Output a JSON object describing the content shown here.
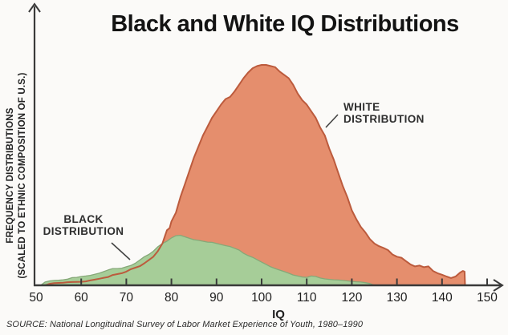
{
  "title": "Black and White IQ Distributions",
  "y_axis": {
    "label_line1": "FREQUENCY DISTRIBUTIONS",
    "label_line2": "(SCALED TO ETHNIC COMPOSITION OF U.S.)"
  },
  "x_axis": {
    "label": "IQ"
  },
  "labels": {
    "white_line1": "WHITE",
    "white_line2": "DISTRIBUTION",
    "black_line1": "BLACK",
    "black_line2": "DISTRIBUTION"
  },
  "source": "SOURCE: National Longitudinal Survey of Labor Market Experience of Youth, 1980–1990",
  "colors": {
    "white_fill": "#E58E6D",
    "white_stroke": "#BC5B3D",
    "black_fill": "#A6CD98",
    "black_stroke": "#86A878",
    "axis": "#3A3A3A",
    "pointer": "#444444"
  },
  "chart_data": {
    "type": "area",
    "title": "Black and White IQ Distributions",
    "xlabel": "IQ",
    "ylabel": "FREQUENCY DISTRIBUTIONS (SCALED TO ETHNIC COMPOSITION OF U.S.)",
    "x_ticks": [
      50,
      60,
      70,
      80,
      90,
      100,
      110,
      120,
      130,
      140,
      150
    ],
    "xlim": [
      50,
      155
    ],
    "ylim": [
      0,
      105
    ],
    "grid": false,
    "legend_position": "inline-annotations",
    "y_units": "relative frequency (unlabeled axis, white peak = 100)",
    "series": [
      {
        "name": "WHITE DISTRIBUTION",
        "peak_iq": 100,
        "points": [
          [
            52,
            0
          ],
          [
            53,
            0.7
          ],
          [
            54,
            1
          ],
          [
            55,
            1.1
          ],
          [
            56,
            1.2
          ],
          [
            57,
            1.4
          ],
          [
            58,
            1.5
          ],
          [
            60,
            1.6
          ],
          [
            61,
            1.8
          ],
          [
            62,
            2.2
          ],
          [
            63,
            2.6
          ],
          [
            64,
            3
          ],
          [
            65,
            3.4
          ],
          [
            66,
            3.8
          ],
          [
            67,
            4.7
          ],
          [
            68,
            5.1
          ],
          [
            69,
            5.5
          ],
          [
            70,
            6.2
          ],
          [
            71,
            7.3
          ],
          [
            72,
            8
          ],
          [
            73,
            8.7
          ],
          [
            74,
            10
          ],
          [
            75,
            11.5
          ],
          [
            76,
            13
          ],
          [
            77,
            15.5
          ],
          [
            78,
            19
          ],
          [
            78.5,
            22
          ],
          [
            79,
            25
          ],
          [
            79.6,
            26
          ],
          [
            80,
            29
          ],
          [
            81,
            33
          ],
          [
            82,
            40
          ],
          [
            83,
            46
          ],
          [
            84,
            52
          ],
          [
            85,
            58
          ],
          [
            86,
            63
          ],
          [
            87,
            68
          ],
          [
            88,
            72
          ],
          [
            89,
            76
          ],
          [
            90,
            79
          ],
          [
            91,
            82
          ],
          [
            92,
            84.5
          ],
          [
            93,
            85.5
          ],
          [
            94,
            88
          ],
          [
            95,
            91
          ],
          [
            96,
            94
          ],
          [
            97,
            96.5
          ],
          [
            98,
            98.5
          ],
          [
            99,
            99.5
          ],
          [
            100,
            100
          ],
          [
            101,
            100
          ],
          [
            102,
            99.5
          ],
          [
            103,
            99
          ],
          [
            104,
            97
          ],
          [
            105,
            95.5
          ],
          [
            106,
            94
          ],
          [
            107,
            91
          ],
          [
            108,
            87
          ],
          [
            109,
            84
          ],
          [
            110,
            82
          ],
          [
            111,
            79
          ],
          [
            112,
            76
          ],
          [
            113,
            71.5
          ],
          [
            114,
            68
          ],
          [
            115,
            62
          ],
          [
            116,
            57
          ],
          [
            117,
            51
          ],
          [
            118,
            45
          ],
          [
            119,
            40
          ],
          [
            120,
            34
          ],
          [
            121,
            30
          ],
          [
            122,
            26.5
          ],
          [
            123,
            24
          ],
          [
            124,
            21
          ],
          [
            125,
            19
          ],
          [
            126,
            17.8
          ],
          [
            127,
            17
          ],
          [
            128,
            16
          ],
          [
            129,
            14
          ],
          [
            130,
            13
          ],
          [
            131,
            12.5
          ],
          [
            132,
            11
          ],
          [
            133,
            9.5
          ],
          [
            134,
            8.6
          ],
          [
            135,
            9
          ],
          [
            136,
            8.2
          ],
          [
            137,
            8.6
          ],
          [
            138,
            6.5
          ],
          [
            139,
            5.5
          ],
          [
            140,
            4.8
          ],
          [
            141,
            4
          ],
          [
            142,
            3.3
          ],
          [
            143,
            4
          ],
          [
            144,
            5.8
          ],
          [
            144.6,
            6.5
          ],
          [
            145,
            6.2
          ],
          [
            145.1,
            0
          ]
        ]
      },
      {
        "name": "BLACK DISTRIBUTION",
        "peak_iq": 82,
        "points": [
          [
            51,
            0
          ],
          [
            52,
            1.5
          ],
          [
            53,
            2
          ],
          [
            54,
            2.2
          ],
          [
            55,
            2.3
          ],
          [
            56,
            2.5
          ],
          [
            57,
            2.8
          ],
          [
            58,
            3.5
          ],
          [
            59,
            3.6
          ],
          [
            60,
            4
          ],
          [
            61,
            4.2
          ],
          [
            62,
            4.5
          ],
          [
            63,
            5
          ],
          [
            64,
            5.5
          ],
          [
            65,
            6.2
          ],
          [
            66,
            7
          ],
          [
            67,
            7.6
          ],
          [
            68,
            7.6
          ],
          [
            69,
            7.8
          ],
          [
            70,
            8.4
          ],
          [
            71,
            9
          ],
          [
            72,
            10
          ],
          [
            73,
            11.5
          ],
          [
            74,
            13
          ],
          [
            75,
            14
          ],
          [
            76,
            15.5
          ],
          [
            77,
            17.5
          ],
          [
            78,
            19
          ],
          [
            79,
            20
          ],
          [
            80,
            21.5
          ],
          [
            81,
            22.5
          ],
          [
            82,
            22.7
          ],
          [
            83,
            22
          ],
          [
            84,
            21.3
          ],
          [
            85,
            20.7
          ],
          [
            86,
            20.4
          ],
          [
            87,
            20
          ],
          [
            88,
            19.6
          ],
          [
            89,
            19.5
          ],
          [
            90,
            19
          ],
          [
            91,
            18.5
          ],
          [
            92,
            18
          ],
          [
            93,
            17.6
          ],
          [
            94,
            16.8
          ],
          [
            95,
            16
          ],
          [
            96,
            14.5
          ],
          [
            97,
            13.5
          ],
          [
            98,
            12.7
          ],
          [
            99,
            11.6
          ],
          [
            100,
            10.5
          ],
          [
            101,
            9.5
          ],
          [
            102,
            8.4
          ],
          [
            103,
            7.6
          ],
          [
            104,
            6.9
          ],
          [
            105,
            6.2
          ],
          [
            106,
            5.5
          ],
          [
            107,
            4.7
          ],
          [
            108,
            4.2
          ],
          [
            109,
            3.8
          ],
          [
            110,
            3.6
          ],
          [
            111,
            4.2
          ],
          [
            112,
            4
          ],
          [
            113,
            3.3
          ],
          [
            114,
            2.9
          ],
          [
            115,
            2.7
          ],
          [
            116,
            2.5
          ],
          [
            117,
            2.4
          ],
          [
            118,
            2.2
          ],
          [
            119,
            2
          ],
          [
            120,
            1.8
          ],
          [
            121,
            1.6
          ],
          [
            122,
            1.5
          ],
          [
            123,
            1.2
          ],
          [
            124,
            0.8
          ],
          [
            125,
            0
          ]
        ]
      }
    ]
  }
}
